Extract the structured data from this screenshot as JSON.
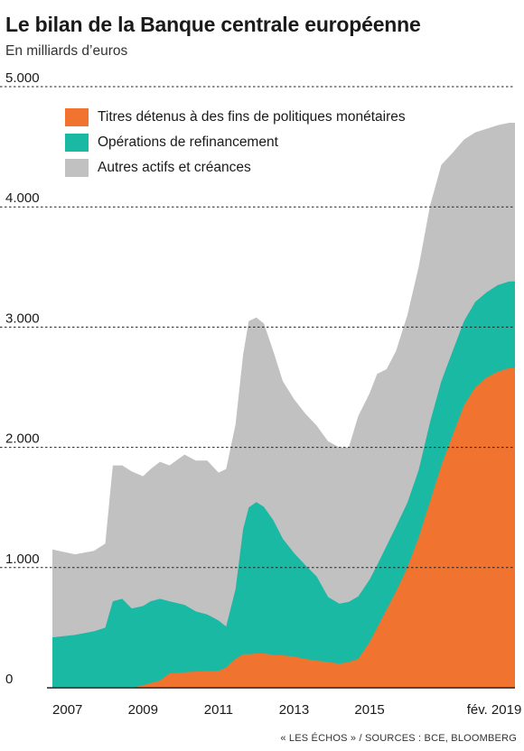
{
  "header": {
    "title": "Le bilan de la Banque centrale européenne",
    "subtitle": "En milliards d’euros"
  },
  "footer": {
    "source": "« LES ÉCHOS » / SOURCES : BCE, BLOOMBERG"
  },
  "colors": {
    "titres": "#f07330",
    "refinancement": "#1ab9a4",
    "autres": "#c1c1c1",
    "grid": "#222222",
    "axis": "#222222",
    "text": "#1a1a1a"
  },
  "chart_data": {
    "type": "area",
    "stacked": true,
    "title": "Le bilan de la Banque centrale européenne",
    "subtitle": "En milliards d’euros",
    "ylim": [
      0,
      5000
    ],
    "xlim": [
      2006.9,
      2019.15
    ],
    "y_ticks": [
      {
        "value": 0,
        "label": "0"
      },
      {
        "value": 1000,
        "label": "1.000"
      },
      {
        "value": 2000,
        "label": "2.000"
      },
      {
        "value": 3000,
        "label": "3.000"
      },
      {
        "value": 4000,
        "label": "4.000"
      },
      {
        "value": 5000,
        "label": "5.000"
      }
    ],
    "x_ticks": [
      {
        "value": 2007.3,
        "label": "2007"
      },
      {
        "value": 2009.3,
        "label": "2009"
      },
      {
        "value": 2011.3,
        "label": "2011"
      },
      {
        "value": 2013.3,
        "label": "2013"
      },
      {
        "value": 2015.3,
        "label": "2015"
      },
      {
        "value": 2018.6,
        "label": "fév. 2019"
      }
    ],
    "grid": "dashed horizontal",
    "legend_position": "top-left",
    "legend": [
      {
        "name": "Titres détenus à des fins de politiques monétaires",
        "color": "#f07330"
      },
      {
        "name": "Opérations de refinancement",
        "color": "#1ab9a4"
      },
      {
        "name": "Autres actifs et créances",
        "color": "#c1c1c1"
      }
    ],
    "x": [
      2006.9,
      2007.5,
      2008.0,
      2008.3,
      2008.5,
      2008.75,
      2009.0,
      2009.3,
      2009.5,
      2009.75,
      2010.0,
      2010.4,
      2010.7,
      2011.0,
      2011.3,
      2011.5,
      2011.75,
      2011.95,
      2012.1,
      2012.3,
      2012.5,
      2012.75,
      2013.0,
      2013.3,
      2013.6,
      2013.9,
      2014.2,
      2014.5,
      2014.75,
      2015.0,
      2015.3,
      2015.5,
      2015.75,
      2016.0,
      2016.3,
      2016.6,
      2016.9,
      2017.2,
      2017.5,
      2017.8,
      2018.1,
      2018.4,
      2018.7,
      2019.0,
      2019.15
    ],
    "series": [
      {
        "name": "Titres détenus à des fins de politiques monétaires",
        "values": [
          0,
          0,
          0,
          0,
          0,
          0,
          0,
          20,
          40,
          60,
          120,
          130,
          135,
          140,
          140,
          170,
          240,
          280,
          280,
          285,
          285,
          275,
          270,
          260,
          240,
          225,
          215,
          200,
          215,
          240,
          380,
          500,
          650,
          800,
          1000,
          1250,
          1550,
          1850,
          2100,
          2350,
          2500,
          2580,
          2630,
          2660,
          2660
        ]
      },
      {
        "name": "Opérations de refinancement",
        "values": [
          420,
          440,
          470,
          500,
          720,
          740,
          660,
          660,
          680,
          680,
          600,
          560,
          500,
          470,
          420,
          340,
          580,
          1040,
          1220,
          1260,
          1220,
          1120,
          970,
          860,
          780,
          700,
          540,
          500,
          500,
          520,
          520,
          520,
          530,
          540,
          540,
          560,
          660,
          700,
          700,
          700,
          710,
          710,
          720,
          720,
          720
        ]
      },
      {
        "name": "Autres actifs et créances",
        "values": [
          730,
          670,
          670,
          700,
          1130,
          1110,
          1140,
          1080,
          1100,
          1140,
          1130,
          1250,
          1255,
          1280,
          1230,
          1310,
          1370,
          1450,
          1550,
          1535,
          1525,
          1405,
          1310,
          1280,
          1260,
          1255,
          1295,
          1300,
          1285,
          1500,
          1550,
          1590,
          1470,
          1460,
          1560,
          1690,
          1800,
          1800,
          1650,
          1510,
          1410,
          1360,
          1330,
          1320,
          1320
        ]
      }
    ]
  }
}
